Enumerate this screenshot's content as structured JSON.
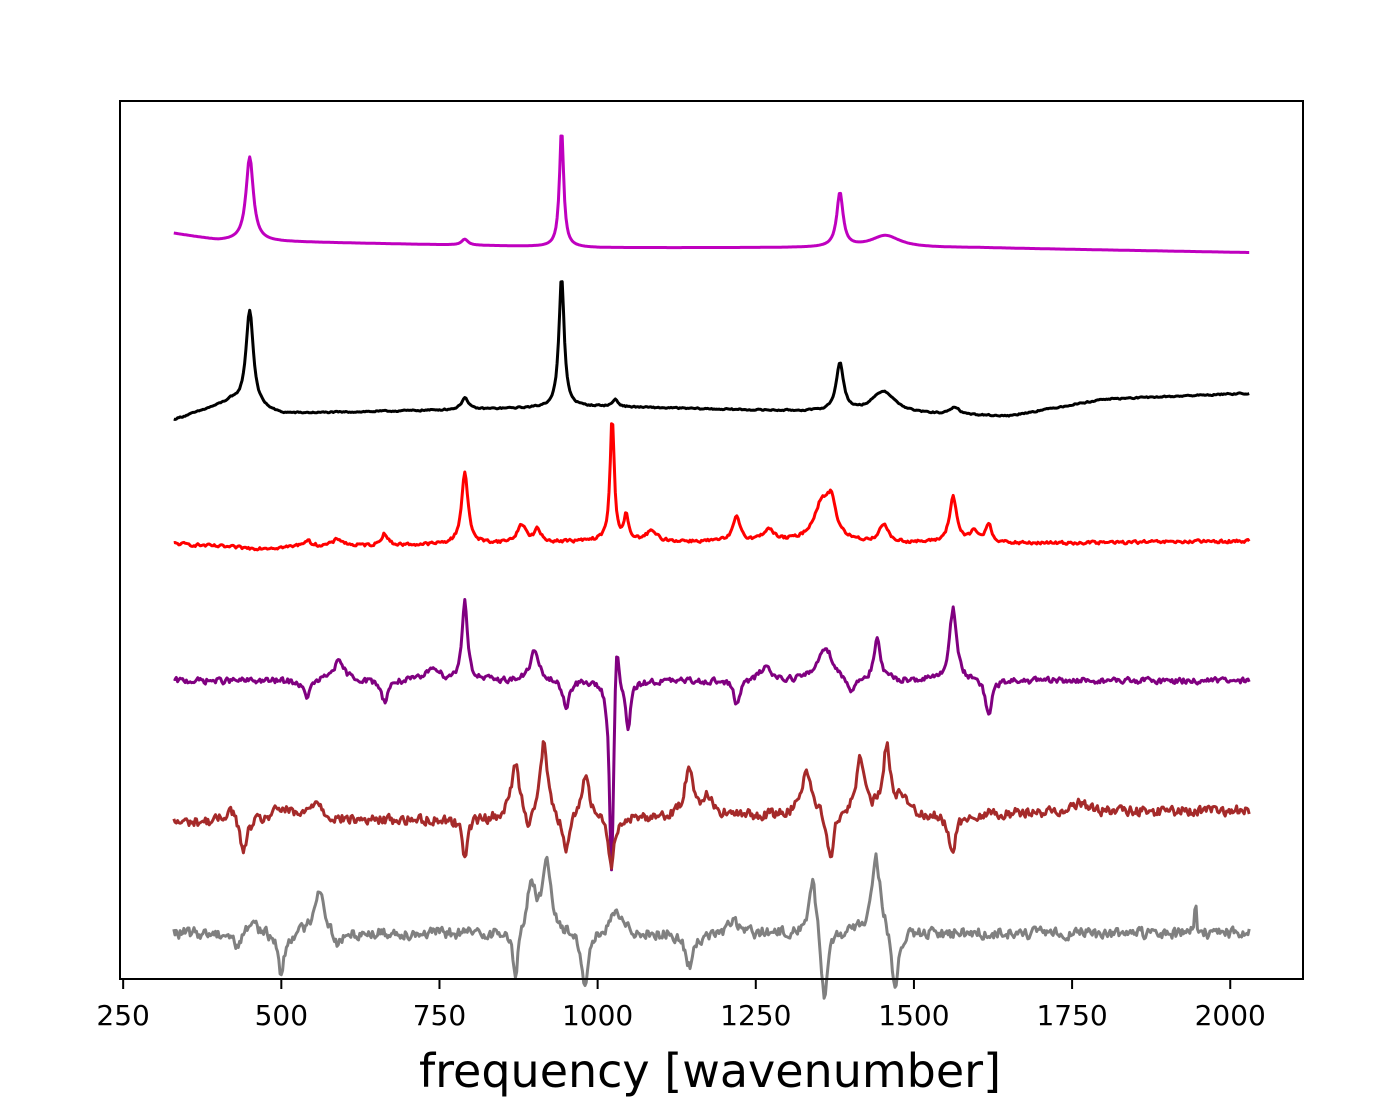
{
  "chart_data": {
    "type": "line",
    "title": "",
    "xlabel": "frequency [wavenumber]",
    "ylabel": "",
    "xlim": [
      245,
      2115
    ],
    "ylim": [
      -0.5,
      6.8
    ],
    "x_ticks": [
      250,
      500,
      750,
      1000,
      1250,
      1500,
      1750,
      2000
    ],
    "x_tick_labels": [
      "250",
      "500",
      "750",
      "1000",
      "1250",
      "1500",
      "1750",
      "2000"
    ],
    "y_ticks_visible": false,
    "grid": false,
    "legend": "none",
    "series": [
      {
        "color": "#bf00bf",
        "offset": 5.7,
        "peaks": [
          [
            450,
            0.7,
            7
          ],
          [
            790,
            0.05,
            6
          ],
          [
            943,
            0.98,
            4
          ],
          [
            1383,
            0.45,
            6
          ],
          [
            1455,
            0.1,
            28
          ]
        ],
        "baseline": [
          [
            330,
            0.0
          ],
          [
            400,
            -0.06
          ],
          [
            1000,
            -0.12
          ],
          [
            1600,
            -0.12
          ],
          [
            2030,
            -0.16
          ]
        ],
        "noise": 0.0
      },
      {
        "color": "#000000",
        "offset": 4.2,
        "peaks": [
          [
            450,
            0.8,
            7
          ],
          [
            790,
            0.1,
            6
          ],
          [
            943,
            1.08,
            5
          ],
          [
            1028,
            0.06,
            5
          ],
          [
            1383,
            0.4,
            7
          ],
          [
            1452,
            0.18,
            22
          ],
          [
            1565,
            0.06,
            8
          ]
        ],
        "baseline": [
          [
            330,
            -0.05
          ],
          [
            420,
            0.1
          ],
          [
            500,
            0.0
          ],
          [
            1000,
            0.06
          ],
          [
            1650,
            -0.02
          ],
          [
            1800,
            0.12
          ],
          [
            2030,
            0.17
          ]
        ],
        "noise": 0.008
      },
      {
        "color": "#ff0000",
        "offset": 3.12,
        "peaks": [
          [
            540,
            0.05,
            10
          ],
          [
            590,
            0.06,
            10
          ],
          [
            663,
            0.1,
            6
          ],
          [
            790,
            0.6,
            6
          ],
          [
            880,
            0.15,
            8
          ],
          [
            905,
            0.1,
            6
          ],
          [
            1023,
            1.02,
            4
          ],
          [
            1045,
            0.2,
            4
          ],
          [
            1085,
            0.08,
            10
          ],
          [
            1220,
            0.2,
            7
          ],
          [
            1270,
            0.1,
            10
          ],
          [
            1355,
            0.32,
            16
          ],
          [
            1370,
            0.25,
            8
          ],
          [
            1452,
            0.15,
            8
          ],
          [
            1562,
            0.38,
            7
          ],
          [
            1595,
            0.1,
            6
          ],
          [
            1618,
            0.16,
            6
          ]
        ],
        "baseline": [
          [
            330,
            0.0
          ],
          [
            450,
            -0.04
          ],
          [
            1000,
            0.02
          ],
          [
            1650,
            0.0
          ],
          [
            2030,
            0.02
          ]
        ],
        "noise": 0.018
      },
      {
        "color": "#800080",
        "offset": 1.98,
        "peaks": [
          [
            540,
            -0.14,
            7
          ],
          [
            590,
            0.15,
            12
          ],
          [
            663,
            -0.18,
            6
          ],
          [
            740,
            0.12,
            10
          ],
          [
            790,
            0.68,
            5
          ],
          [
            900,
            0.25,
            8
          ],
          [
            950,
            -0.22,
            6
          ],
          [
            1022,
            -1.65,
            4
          ],
          [
            1030,
            0.55,
            4
          ],
          [
            1048,
            -0.38,
            5
          ],
          [
            1220,
            -0.2,
            6
          ],
          [
            1265,
            0.12,
            10
          ],
          [
            1360,
            0.28,
            14
          ],
          [
            1400,
            -0.12,
            7
          ],
          [
            1442,
            0.33,
            6
          ],
          [
            1562,
            0.6,
            7
          ],
          [
            1618,
            -0.3,
            6
          ]
        ],
        "baseline": [
          [
            330,
            0.0
          ],
          [
            2030,
            0.0
          ]
        ],
        "noise": 0.035
      },
      {
        "color": "#a52a2a",
        "offset": 0.9,
        "peaks": [
          [
            420,
            0.12,
            10
          ],
          [
            440,
            -0.3,
            6
          ],
          [
            500,
            0.1,
            18
          ],
          [
            555,
            0.16,
            12
          ],
          [
            790,
            -0.3,
            5
          ],
          [
            870,
            0.45,
            8
          ],
          [
            890,
            -0.12,
            6
          ],
          [
            915,
            0.62,
            7
          ],
          [
            950,
            -0.35,
            6
          ],
          [
            980,
            0.35,
            8
          ],
          [
            1022,
            -0.45,
            5
          ],
          [
            1145,
            0.42,
            8
          ],
          [
            1175,
            0.15,
            10
          ],
          [
            1330,
            0.38,
            10
          ],
          [
            1368,
            -0.38,
            6
          ],
          [
            1415,
            0.45,
            8
          ],
          [
            1457,
            0.55,
            7
          ],
          [
            1480,
            0.15,
            8
          ],
          [
            1560,
            -0.3,
            8
          ],
          [
            1760,
            0.08,
            18
          ]
        ],
        "baseline": [
          [
            330,
            -0.1
          ],
          [
            2030,
            0.0
          ]
        ],
        "noise": 0.06
      },
      {
        "color": "#808080",
        "offset": -0.12,
        "peaks": [
          [
            430,
            -0.12,
            6
          ],
          [
            455,
            0.12,
            8
          ],
          [
            500,
            -0.35,
            6
          ],
          [
            560,
            0.38,
            10
          ],
          [
            590,
            -0.12,
            10
          ],
          [
            870,
            -0.42,
            5
          ],
          [
            895,
            0.42,
            8
          ],
          [
            920,
            0.6,
            8
          ],
          [
            980,
            -0.42,
            7
          ],
          [
            1030,
            0.18,
            10
          ],
          [
            1145,
            -0.28,
            8
          ],
          [
            1215,
            0.12,
            8
          ],
          [
            1340,
            0.48,
            7
          ],
          [
            1358,
            -0.58,
            6
          ],
          [
            1440,
            0.65,
            9
          ],
          [
            1470,
            -0.55,
            6
          ],
          [
            1945,
            0.32,
            1.5
          ]
        ],
        "baseline": [
          [
            330,
            0.0
          ],
          [
            2030,
            0.0
          ]
        ],
        "noise": 0.065
      }
    ]
  }
}
